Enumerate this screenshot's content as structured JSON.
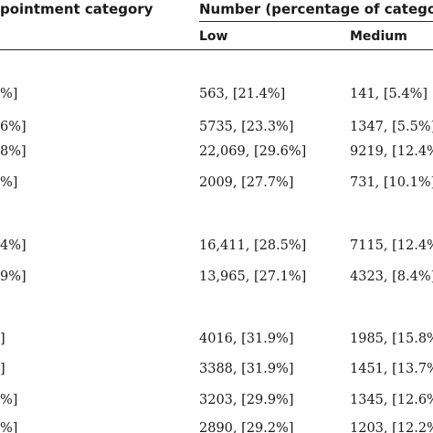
{
  "header": {
    "left_label": "pointment category",
    "right_label": "Number (percentage of categor",
    "col_low": "Low",
    "col_medium": "Medium"
  },
  "rows": [
    {
      "first": "%]",
      "low": "563, [21.4%]",
      "medium": "141, [5.4%]"
    },
    {
      "first": "6%]",
      "low": "5735, [23.3%]",
      "medium": "1347, [5.5%]"
    },
    {
      "first": "8%]",
      "low": "22,069, [29.6%]",
      "medium": "9219, [12.4%"
    },
    {
      "first": "%]",
      "low": "2009, [27.7%]",
      "medium": "731, [10.1%]"
    },
    {
      "first": "4%]",
      "low": "16,411, [28.5%]",
      "medium": "7115, [12.4%"
    },
    {
      "first": "9%]",
      "low": "13,965, [27.1%]",
      "medium": "4323, [8.4%]"
    },
    {
      "first": "]",
      "low": "4016, [31.9%]",
      "medium": "1985, [15.8%"
    },
    {
      "first": "]",
      "low": "3388, [31.9%]",
      "medium": "1451, [13.7%"
    },
    {
      "first": "%]",
      "low": "3203, [29.9%]",
      "medium": "1345, [12.6%"
    },
    {
      "first": "%]",
      "low": "2890, [29.2%]",
      "medium": "1203, [12.2%"
    }
  ]
}
